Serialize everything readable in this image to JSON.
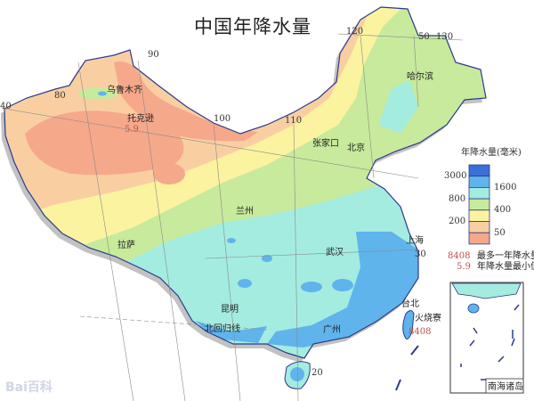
{
  "title": "中国年降水量",
  "gridlines": {
    "lon_120": "120",
    "lon_130": "130",
    "lat_50": "50",
    "lon_90": "90",
    "lon_80": "80",
    "lat_40": "40",
    "lon_100": "100",
    "lon_110": "110",
    "lat_30": "30",
    "lat_20": "20"
  },
  "places": {
    "urumqi": "乌鲁木齐",
    "toksun": "托克逊",
    "toksun_value": "5.9",
    "harbin": "哈尔滨",
    "zhangjiakou": "张家口",
    "beijing": "北京",
    "lanzhou": "兰州",
    "lhasa": "拉萨",
    "wuhan": "武汉",
    "shanghai": "上海",
    "kunming": "昆明",
    "tropic": "北回归线",
    "guangzhou": "广州",
    "taipei": "台北",
    "huoshaoliao": "火烧寮",
    "huoshaoliao_value": "8408",
    "south_sea": "南海诸岛"
  },
  "legend": {
    "title": "年降水量(毫米)",
    "left_ticks": [
      "3000",
      "800",
      "200"
    ],
    "right_ticks": [
      "1600",
      "400",
      "50"
    ],
    "classes": [
      {
        "range": ">3000",
        "color": "#3b6fd6"
      },
      {
        "range": "1600-3000",
        "color": "#5fb4ec"
      },
      {
        "range": "800-1600",
        "color": "#a4ece0"
      },
      {
        "range": "400-800",
        "color": "#c8ea9c"
      },
      {
        "range": "200-400",
        "color": "#fbf3a0"
      },
      {
        "range": "50-200",
        "color": "#f9cfa2"
      },
      {
        "range": "<50",
        "color": "#f6a88a"
      }
    ],
    "max_value": "8408",
    "max_text": "最多一年降水量",
    "min_value": "5.9",
    "min_text": "年降水量最小值"
  },
  "watermark": "Bai百科"
}
